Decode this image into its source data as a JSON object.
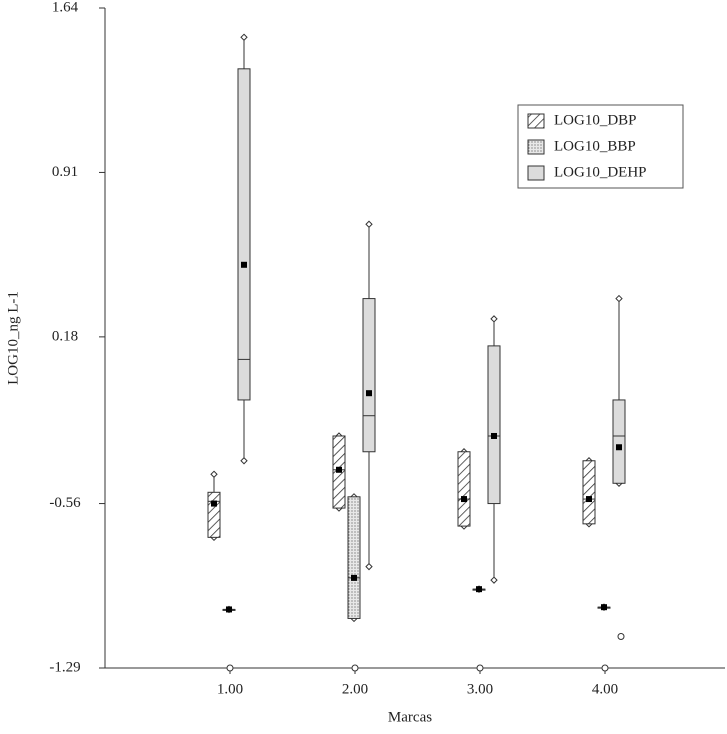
{
  "chart_data": {
    "type": "box",
    "xlabel": "Marcas",
    "ylabel": "LOG10_ng L-1",
    "categories": [
      "1.00",
      "2.00",
      "3.00",
      "4.00"
    ],
    "ylim": [
      -1.29,
      1.64
    ],
    "yticks": [
      1.64,
      0.91,
      0.18,
      -0.56,
      -1.29
    ],
    "legend": "upper right",
    "series": [
      {
        "name": "LOG10_DBP",
        "color": "#ffffff",
        "pattern": "hatch",
        "values": [
          {
            "min": -0.71,
            "q1": -0.71,
            "median": -0.55,
            "q3": -0.51,
            "max": -0.43,
            "mean": -0.56
          },
          {
            "min": -0.58,
            "q1": -0.58,
            "median": -0.41,
            "q3": -0.26,
            "max": -0.26,
            "mean": -0.41
          },
          {
            "min": -0.66,
            "q1": -0.66,
            "median": -0.54,
            "q3": -0.33,
            "max": -0.33,
            "mean": -0.54
          },
          {
            "min": -0.65,
            "q1": -0.65,
            "median": -0.54,
            "q3": -0.37,
            "max": -0.37,
            "mean": -0.54
          }
        ]
      },
      {
        "name": "LOG10_BBP",
        "color": "#e8e8e8",
        "pattern": "dots",
        "values": [
          {
            "min": -1.03,
            "q1": -1.03,
            "median": -1.03,
            "q3": -1.03,
            "max": -1.03,
            "mean": -1.03
          },
          {
            "min": -1.07,
            "q1": -1.07,
            "median": -0.89,
            "q3": -0.53,
            "max": -0.53,
            "mean": -0.89
          },
          {
            "min": -0.94,
            "q1": -0.94,
            "median": -0.94,
            "q3": -0.94,
            "max": -0.94,
            "mean": -0.94
          },
          {
            "min": -1.02,
            "q1": -1.02,
            "median": -1.02,
            "q3": -1.02,
            "max": -1.02,
            "mean": -1.02
          }
        ],
        "outliers": [
          [],
          [],
          [],
          [
            -1.15
          ]
        ]
      },
      {
        "name": "LOG10_DEHP",
        "color": "#dcdcdc",
        "pattern": "solid",
        "values": [
          {
            "min": -0.37,
            "q1": -0.1,
            "median": 0.08,
            "q3": 1.37,
            "max": 1.51,
            "mean": 0.5
          },
          {
            "min": -0.84,
            "q1": -0.33,
            "median": -0.17,
            "q3": 0.35,
            "max": 0.68,
            "mean": -0.07
          },
          {
            "min": -0.9,
            "q1": -0.56,
            "median": -0.26,
            "q3": 0.14,
            "max": 0.26,
            "mean": -0.26
          },
          {
            "min": -0.47,
            "q1": -0.47,
            "median": -0.26,
            "q3": -0.1,
            "max": 0.35,
            "mean": -0.31
          }
        ]
      }
    ]
  }
}
